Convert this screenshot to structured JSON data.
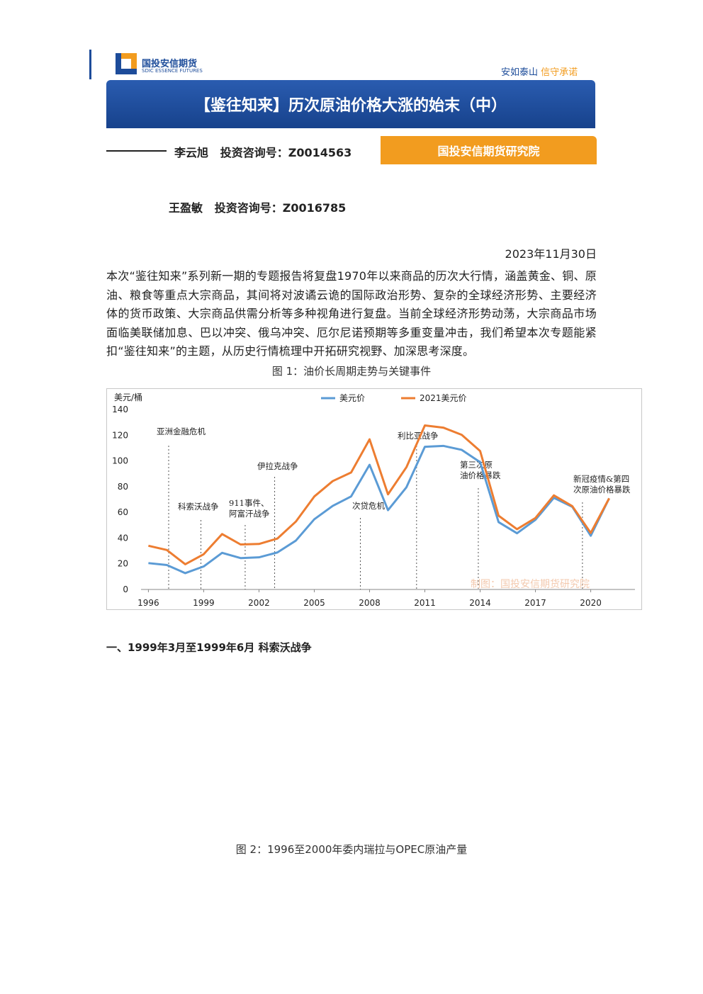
{
  "header": {
    "logo_cn": "国投安信期货",
    "logo_en": "SDIC ESSENCE FUTURES",
    "slogan_a": "安如泰山",
    "slogan_b": "信守承诺"
  },
  "title": "【鉴往知来】历次原油价格大涨的始末（中）",
  "authors": [
    {
      "name": "李云旭",
      "license": "投资咨询号：Z0014563"
    },
    {
      "name": "王盈敏",
      "license": "投资咨询号：Z0016785"
    }
  ],
  "institute": "国投安信期货研究院",
  "date": "2023年11月30日",
  "intro": "本次“鉴往知来”系列新一期的专题报告将复盘1970年以来商品的历次大行情，涵盖黄金、铜、原油、粮食等重点大宗商品，其间将对波谲云诡的国际政治形势、复杂的全球经济形势、主要经济体的货币政策、大宗商品供需分析等多种视角进行复盘。当前全球经济形势动荡，大宗商品市场面临美联储加息、巴以冲突、俄乌冲突、厄尔尼诺预期等多重变量冲击，我们希望本次专题能紧扣“鉴往知来”的主题，从历史行情梳理中开拓研究视野、加深思考深度。",
  "figure1_caption": "图 1：油价长周期走势与关键事件",
  "chart_data": {
    "type": "line",
    "y_label": "美元/桶",
    "watermark": "制图：国投安信期货研究院",
    "x": [
      1996,
      1997,
      1998,
      1999,
      2000,
      2001,
      2002,
      2003,
      2004,
      2005,
      2006,
      2007,
      2008,
      2009,
      2010,
      2011,
      2012,
      2013,
      2014,
      2015,
      2016,
      2017,
      2018,
      2019,
      2020,
      2021
    ],
    "series": [
      {
        "name": "美元价",
        "color": "#5b9bd5",
        "values": [
          20.5,
          19,
          12.7,
          17.9,
          28.5,
          24.4,
          25,
          28.8,
          38,
          54.6,
          65,
          72.4,
          97,
          61.7,
          79.5,
          111,
          111.7,
          108.6,
          99,
          52.4,
          43.7,
          54.2,
          71.3,
          64.3,
          41.8,
          70.9
        ]
      },
      {
        "name": "2021美元价",
        "color": "#ed7d31",
        "values": [
          34,
          30.7,
          19.6,
          27.4,
          43.1,
          35,
          35.4,
          39.6,
          52.8,
          72.3,
          84.3,
          91,
          116.8,
          74,
          95.1,
          127.6,
          125.9,
          120.3,
          107.7,
          57.4,
          46.9,
          55.6,
          73.2,
          64.8,
          44,
          70.9
        ]
      }
    ],
    "xlim": [
      1995.6,
      2022.4
    ],
    "ylim": [
      0,
      140
    ],
    "xticks": [
      1996,
      1999,
      2002,
      2005,
      2008,
      2011,
      2014,
      2017,
      2020
    ],
    "yticks": [
      0,
      20,
      40,
      60,
      80,
      100,
      120,
      140
    ],
    "legend": "top",
    "annotations": [
      {
        "x": 1997.1,
        "text": [
          "亚洲金融危机"
        ]
      },
      {
        "x": 1998.85,
        "text": [
          "科索沃战争"
        ]
      },
      {
        "x": 2001.25,
        "text": [
          "911事件、",
          "阿富汗战争"
        ]
      },
      {
        "x": 2002.85,
        "text": [
          "伊拉克战争"
        ]
      },
      {
        "x": 2007.5,
        "text": [
          "次贷危机"
        ]
      },
      {
        "x": 2010.55,
        "text": [
          "利比亚战争"
        ]
      },
      {
        "x": 2013.9,
        "text": [
          "第三次原",
          "油价格暴跌"
        ]
      },
      {
        "x": 2019.55,
        "text": [
          "新冠疫情&第四",
          "次原油价格暴跌"
        ]
      }
    ]
  },
  "section1": "一、1999年3月至1999年6月 科索沃战争",
  "figure2_caption": "图 2：1996至2000年委内瑞拉与OPEC原油产量"
}
